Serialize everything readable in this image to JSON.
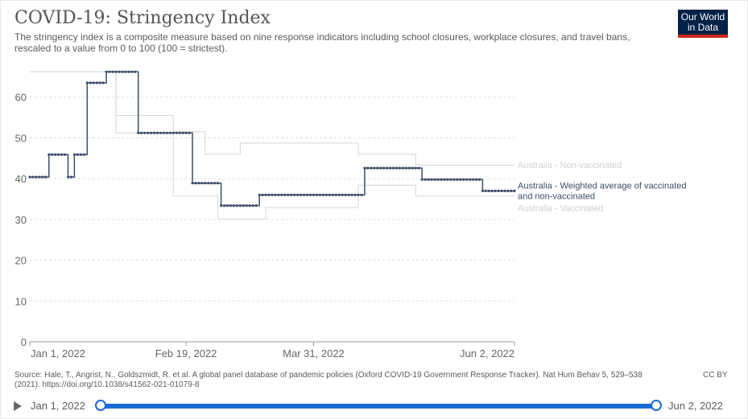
{
  "header": {
    "title": "COVID-19: Stringency Index",
    "subtitle": "The stringency index is a composite measure based on nine response indicators including school closures, workplace closures, and travel bans, rescaled to a value from 0 to 100 (100 = strictest).",
    "logo_line1": "Our World",
    "logo_line2": "in Data"
  },
  "footer": {
    "source": "Source: Hale, T., Angrist, N., Goldszmidt, R. et al. A global panel database of pandemic policies (Oxford COVID-19 Government Response Tracker). Nat Hum Behav 5, 529–538 (2021). https://doi.org/10.1038/s41562-021-01079-8",
    "license": "CC BY"
  },
  "timeline": {
    "start_label": "Jan 1, 2022",
    "end_label": "Jun 2, 2022",
    "start_fraction": 0,
    "end_fraction": 1
  },
  "colors": {
    "main_series": "#3d4d6a",
    "faded_series": "#d6d6d6",
    "faded_label": "#cfcfcf",
    "grid": "#dddddd",
    "accent": "#1a6bd3"
  },
  "chart_data": {
    "type": "line",
    "x_type": "date",
    "xlim": [
      "2022-01-01",
      "2022-06-02"
    ],
    "x_ticks": [
      {
        "date": "2022-01-01",
        "label": "Jan 1, 2022"
      },
      {
        "date": "2022-02-19",
        "label": "Feb 19, 2022"
      },
      {
        "date": "2022-03-31",
        "label": "Mar 31, 2022"
      },
      {
        "date": "2022-06-02",
        "label": "Jun 2, 2022"
      }
    ],
    "ylim": [
      0,
      70
    ],
    "y_ticks": [
      0,
      10,
      20,
      30,
      40,
      50,
      60
    ],
    "grid": true,
    "legend": "right-inline",
    "series": [
      {
        "name": "Australia - Non-vaccinated",
        "label_lines": [
          "Australia - Non-vaccinated"
        ],
        "emphasis": false,
        "markers": false,
        "steps": [
          {
            "start": "2022-01-01",
            "end": "2022-01-27",
            "value": 66.2
          },
          {
            "start": "2022-01-28",
            "end": "2022-02-14",
            "value": 55.5
          },
          {
            "start": "2022-02-15",
            "end": "2022-02-24",
            "value": 51.5
          },
          {
            "start": "2022-02-25",
            "end": "2022-03-07",
            "value": 46.0
          },
          {
            "start": "2022-03-08",
            "end": "2022-04-13",
            "value": 48.7
          },
          {
            "start": "2022-04-14",
            "end": "2022-05-01",
            "value": 46.0
          },
          {
            "start": "2022-05-02",
            "end": "2022-06-02",
            "value": 43.3
          }
        ]
      },
      {
        "name": "Australia - Weighted average of vaccinated and non-vaccinated",
        "label_lines": [
          "Australia - Weighted average of vaccinated",
          "and non-vaccinated"
        ],
        "emphasis": true,
        "markers": true,
        "steps": [
          {
            "start": "2022-01-01",
            "end": "2022-01-06",
            "value": 40.4
          },
          {
            "start": "2022-01-07",
            "end": "2022-01-12",
            "value": 45.9
          },
          {
            "start": "2022-01-13",
            "end": "2022-01-14",
            "value": 40.4
          },
          {
            "start": "2022-01-15",
            "end": "2022-01-18",
            "value": 45.9
          },
          {
            "start": "2022-01-19",
            "end": "2022-01-24",
            "value": 63.5
          },
          {
            "start": "2022-01-25",
            "end": "2022-02-03",
            "value": 66.2
          },
          {
            "start": "2022-02-04",
            "end": "2022-02-20",
            "value": 51.2
          },
          {
            "start": "2022-02-21",
            "end": "2022-03-01",
            "value": 38.9
          },
          {
            "start": "2022-03-02",
            "end": "2022-03-13",
            "value": 33.4
          },
          {
            "start": "2022-03-14",
            "end": "2022-04-15",
            "value": 36.0
          },
          {
            "start": "2022-04-16",
            "end": "2022-05-03",
            "value": 42.6
          },
          {
            "start": "2022-05-04",
            "end": "2022-05-22",
            "value": 39.8
          },
          {
            "start": "2022-05-23",
            "end": "2022-06-02",
            "value": 37.0
          }
        ]
      },
      {
        "name": "Australia - Vaccinated",
        "label_lines": [
          "Australia - Vaccinated"
        ],
        "emphasis": false,
        "markers": false,
        "steps": [
          {
            "start": "2022-01-01",
            "end": "2022-01-27",
            "value": 66.2
          },
          {
            "start": "2022-01-28",
            "end": "2022-02-14",
            "value": 51.2
          },
          {
            "start": "2022-02-15",
            "end": "2022-02-28",
            "value": 35.7
          },
          {
            "start": "2022-03-01",
            "end": "2022-03-15",
            "value": 30.1
          },
          {
            "start": "2022-03-16",
            "end": "2022-04-13",
            "value": 32.9
          },
          {
            "start": "2022-04-14",
            "end": "2022-05-01",
            "value": 38.4
          },
          {
            "start": "2022-05-02",
            "end": "2022-06-02",
            "value": 35.7
          }
        ]
      }
    ]
  }
}
